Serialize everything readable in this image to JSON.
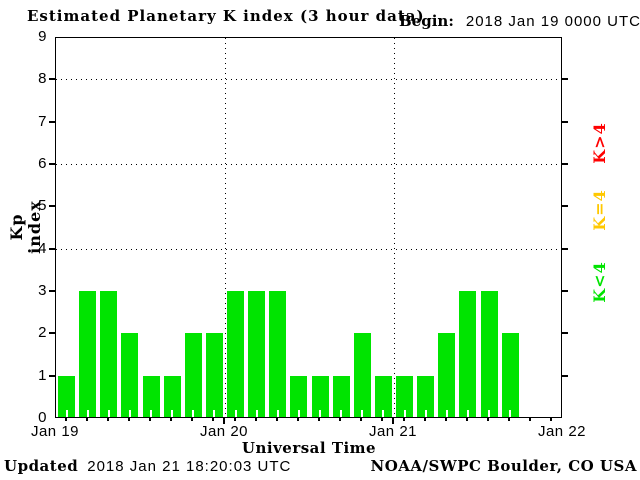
{
  "header": {
    "title": "Estimated Planetary K index (3 hour data)",
    "begin_label": "Begin:",
    "begin_value": "2018 Jan 19 0000 UTC"
  },
  "footer": {
    "updated_label": "Updated",
    "updated_value": "2018 Jan 21 18:20:03 UTC",
    "credit": "NOAA/SWPC Boulder, CO USA"
  },
  "legend": {
    "position": "right",
    "items": [
      {
        "label": "K>4",
        "color": "#ff0000"
      },
      {
        "label": "K=4",
        "color": "#ffc800"
      },
      {
        "label": "K<4",
        "color": "#00e400"
      }
    ]
  },
  "chart_data": {
    "type": "bar",
    "title": "Estimated Planetary K index (3 hour data)",
    "xlabel": "Universal Time",
    "ylabel": "Kp index",
    "ylim": [
      0,
      9
    ],
    "yticks": [
      0,
      1,
      2,
      3,
      4,
      5,
      6,
      7,
      8,
      9
    ],
    "grid_y_dotted": [
      4,
      6,
      8
    ],
    "x_tick_labels": [
      "Jan 19",
      "Jan 20",
      "Jan 21",
      "Jan 22"
    ],
    "hours_per_bar": 3,
    "slots_total": 24,
    "slots_per_day": 8,
    "bar_color": "#00e400",
    "series": [
      {
        "day": "Jan 19",
        "values": [
          1,
          3,
          3,
          2,
          1,
          1,
          2,
          2
        ]
      },
      {
        "day": "Jan 20",
        "values": [
          3,
          3,
          3,
          1,
          1,
          1,
          2,
          1
        ]
      },
      {
        "day": "Jan 21",
        "values": [
          1,
          1,
          2,
          3,
          3,
          2
        ]
      }
    ],
    "values_flat": [
      1,
      3,
      3,
      2,
      1,
      1,
      2,
      2,
      3,
      3,
      3,
      1,
      1,
      1,
      2,
      1,
      1,
      1,
      2,
      3,
      3,
      2
    ]
  }
}
